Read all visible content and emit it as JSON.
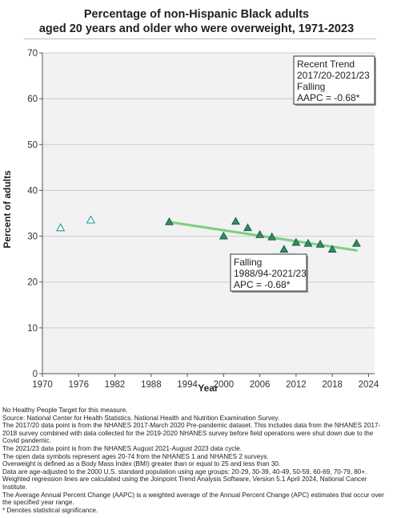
{
  "title_line1": "Percentage of non-Hispanic Black adults",
  "title_line2": "aged 20 years and older who were overweight, 1971-2023",
  "chart_data": {
    "type": "scatter",
    "title": "Percentage of non-Hispanic Black adults aged 20 years and older who were overweight, 1971-2023",
    "xlabel": "Year",
    "ylabel": "Percent of adults",
    "xlim": [
      1970,
      2025
    ],
    "ylim": [
      0,
      70
    ],
    "xticks": [
      1970,
      1976,
      1982,
      1988,
      1994,
      2000,
      2006,
      2012,
      2018,
      2024
    ],
    "yticks": [
      0,
      10,
      20,
      30,
      40,
      50,
      60,
      70
    ],
    "grid": true,
    "series": [
      {
        "style": "open-triangle",
        "x": [
          1973,
          1978
        ],
        "y": [
          31.8,
          33.5
        ]
      },
      {
        "style": "filled-triangle",
        "x": [
          1991,
          2000,
          2002,
          2004,
          2006,
          2008,
          2010,
          2012,
          2014,
          2016,
          2018,
          2022
        ],
        "y": [
          33.1,
          30.0,
          33.2,
          31.8,
          30.3,
          29.8,
          27.1,
          28.6,
          28.4,
          28.2,
          27.1,
          28.4
        ]
      },
      {
        "style": "trend-line",
        "x": [
          1991,
          2022
        ],
        "y": [
          33.1,
          26.9
        ]
      }
    ],
    "annotations": [
      {
        "lines": [
          "Recent Trend",
          "2017/20-2021/23",
          "Falling",
          "AAPC = -0.68*"
        ]
      },
      {
        "lines": [
          "Falling",
          "1988/94-2021/23",
          "APC = -0.68*"
        ]
      }
    ],
    "colors": {
      "filled_marker": "#2e8b6e",
      "open_marker": "#2ea89a",
      "trend": "#7ed07e",
      "grid": "#cccccc",
      "plot_bg": "#f2f2f2"
    }
  },
  "notes": [
    "No Healthy People Target for this measure.",
    "Source: National Center for Health Statistics. National Health and Nutrition Examination Survey.",
    "The 2017/20 data point is from the NHANES 2017-March 2020 Pre-pandemic dataset. This includes data from the NHANES 2017-2018 survey combined with data collected for the 2019-2020 NHANES survey before field operations were shut down due to the Covid pandemic.",
    "The 2021/23 data point is from the NHANES August 2021-August 2023 data cycle.",
    "The open data symbols represent ages 20-74 from the NHANES 1 and NHANES 2 surveys.",
    "Overweight is defined as a Body Mass Index (BMI) greater than or equal to 25 and less than 30.",
    "Data are age-adjusted to the 2000 U.S. standard population using age groups: 20-29, 30-39, 40-49, 50-59, 60-69, 70-79, 80+.",
    "Weighted regression lines are calculated using the Joinpoint Trend Analysis Software, Version 5.1 April 2024, National Cancer Institute.",
    "The Average Annual Percent Change (AAPC) is a weighted average of the Annual Percent Change (APC) estimates that occur over the specified year range.",
    "* Denotes statistical significance."
  ]
}
